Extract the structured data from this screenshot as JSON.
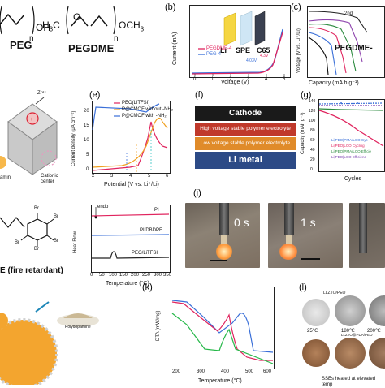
{
  "panel_a": {
    "peg": "PEG",
    "pegdme": "PEGDME",
    "oh": "OH",
    "n1": "n",
    "h3c": "H",
    "h3c_sub": "3",
    "c_label": "C",
    "och3": "OCH",
    "och3_sub": "3",
    "n2": "n"
  },
  "panel_b": {
    "label": "(b)",
    "ylabel": "Current (mA)",
    "xlabel": "Voltage (V)",
    "legend": [
      "PEGDME-4",
      "PEG-4"
    ],
    "tick_labels": [
      "0",
      "1",
      "2",
      "3",
      "4",
      "5"
    ],
    "inset": {
      "li": "Li",
      "spe": "SPE",
      "c65": "C65"
    },
    "values": [
      "4.03V",
      "4.3V"
    ],
    "colors": {
      "pegdme": "#e0245e",
      "peg": "#3a6fd8"
    }
  },
  "panel_c": {
    "label": "(c)",
    "ylabel": "Voltage (V vs. Li⁺/Li)",
    "xlabel": "Capacity (mA h g⁻¹)",
    "legend": "PEGDME-",
    "curve_label": "2nd"
  },
  "panel_e": {
    "label": "(e)",
    "ylabel": "Current density (μA cm⁻²)",
    "xlabel": "Potential (V vs. Li⁺/Li)",
    "legend": [
      "PEO(LiTFSI)",
      "P@CMOF without -NH₂",
      "P@CMOF with -NH₂"
    ],
    "x_ticks": [
      "2",
      "3",
      "4",
      "5",
      "6"
    ],
    "y_ticks": [
      "0",
      "5",
      "10",
      "15",
      "20"
    ]
  },
  "panel_d_fragment": {
    "zr": "Zr⁴⁺",
    "cationic": "Cationic center",
    "amin": "amin"
  },
  "panel_f": {
    "label": "(f)",
    "layers": [
      "Cathode",
      "High voltage stable polymer electrolyte",
      "Low voltage stable polymer electrolyte",
      "Li metal"
    ]
  },
  "panel_g": {
    "label": "(g)",
    "ylabel": "Capacity (mAh g⁻¹)",
    "xlabel": "Cycles",
    "y_ticks": [
      "0",
      "20",
      "40",
      "60",
      "80",
      "100",
      "120",
      "140"
    ],
    "legend": [
      "Li|PEO|PMA/LCO Cyc",
      "Li|PEO|LCO Cycling",
      "Li|PEO|PMA/LCO Efficie",
      "Li|PEO|LCO Efficienc"
    ]
  },
  "panel_h": {
    "fragment_label": "E (fire retardant)",
    "endo": "endo",
    "ylabel": "Heat Flow",
    "xlabel": "Temperature (°C)",
    "x_ticks": [
      "0",
      "50",
      "100",
      "150",
      "200",
      "250",
      "300",
      "350"
    ],
    "curves": [
      "PI",
      "PI/DBDPE",
      "PEO/LiTFSI"
    ],
    "colors": {
      "pi": "#e0245e",
      "pidbdpe": "#3a6fd8",
      "peo": "#222222"
    }
  },
  "panel_i": {
    "label": "(i)",
    "times": [
      "0 s",
      "1 s"
    ]
  },
  "panel_j_fragment": {
    "polydopamine": "Polydopamine"
  },
  "panel_k": {
    "label": "(k)",
    "ylabel": "DTA (mW/mg)",
    "xlabel": "Temperature (°C)",
    "x_ticks": [
      "200",
      "300",
      "400",
      "500",
      "600"
    ]
  },
  "panel_l": {
    "label": "(l)",
    "top_label": "LLZTO/PEO",
    "temps": [
      "25℃",
      "180℃",
      "200℃"
    ],
    "bottom_label": "LLZTO@PDA/PEO",
    "caption": "SSEs heated at elevated temp"
  }
}
